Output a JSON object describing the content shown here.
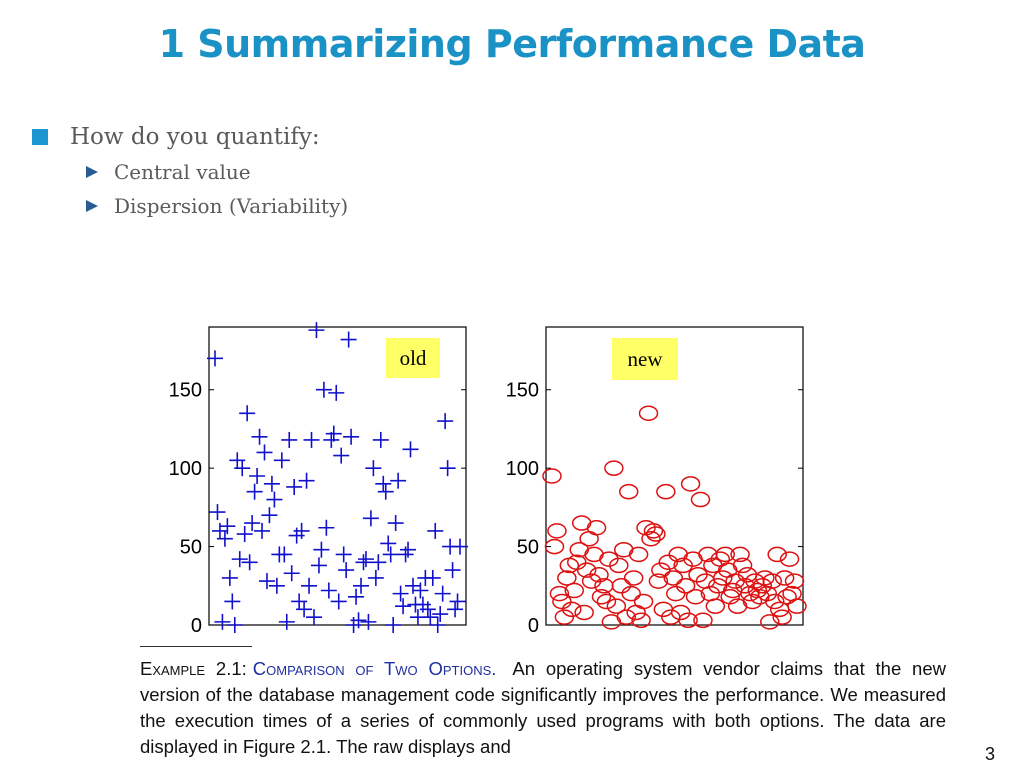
{
  "slide": {
    "title": "1  Summarizing Performance Data",
    "bullet": "How do you quantify:",
    "sub_bullets": [
      "Central value",
      "Dispersion (Variability)"
    ],
    "page_number": "3"
  },
  "caption": {
    "label": "Example 2.1:",
    "title": "Comparison of Two Options.",
    "text": "An operating system vendor claims that the new version of the database management code significantly improves the performance. We measured the execution times of a series of commonly used programs with both options. The data are displayed in Figure 2.1. The raw displays and"
  },
  "colors": {
    "title": "#1a92c6",
    "old_series": "#1010cc",
    "new_series": "#dd1111",
    "label_box": "#ffff66"
  },
  "chart_data": [
    {
      "type": "scatter",
      "annotation": "old",
      "marker": "plus",
      "ylim": [
        0,
        190
      ],
      "yticks": [
        0,
        50,
        100,
        150
      ],
      "grid": false,
      "x": [
        1,
        2,
        3,
        4,
        5,
        6,
        7,
        8,
        9,
        10,
        11,
        12,
        13,
        14,
        15,
        16,
        17,
        18,
        19,
        20,
        21,
        22,
        23,
        24,
        25,
        26,
        27,
        28,
        29,
        30,
        31,
        32,
        33,
        34,
        35,
        36,
        37,
        38,
        39,
        40,
        41,
        42,
        43,
        44,
        45,
        46,
        47,
        48,
        49,
        50,
        51,
        52,
        53,
        54,
        55,
        56,
        57,
        58,
        59,
        60,
        61,
        62,
        63,
        64,
        65,
        66,
        67,
        68,
        69,
        70,
        71,
        72,
        73,
        74,
        75,
        76,
        77,
        78,
        79,
        80,
        81,
        82,
        83,
        84,
        85,
        86,
        87,
        88,
        89,
        90,
        91,
        92,
        93,
        94,
        95,
        96,
        97,
        98,
        99,
        100
      ],
      "y": [
        170,
        72,
        60,
        2,
        55,
        63,
        30,
        15,
        0,
        105,
        42,
        100,
        58,
        135,
        40,
        65,
        85,
        95,
        120,
        60,
        110,
        28,
        70,
        90,
        80,
        25,
        45,
        105,
        45,
        2,
        118,
        33,
        88,
        57,
        15,
        60,
        10,
        92,
        25,
        118,
        5,
        188,
        38,
        48,
        150,
        62,
        22,
        118,
        122,
        148,
        15,
        108,
        45,
        35,
        182,
        120,
        0,
        18,
        3,
        25,
        40,
        42,
        2,
        68,
        100,
        30,
        40,
        118,
        90,
        85,
        52,
        45,
        0,
        65,
        92,
        20,
        12,
        45,
        48,
        112,
        25,
        13,
        5,
        22,
        13,
        30,
        10,
        5,
        30,
        60,
        0,
        7,
        20,
        130,
        100,
        50,
        35,
        10,
        15,
        50
      ]
    },
    {
      "type": "scatter",
      "annotation": "new",
      "marker": "circle",
      "ylim": [
        0,
        190
      ],
      "yticks": [
        0,
        50,
        100,
        150
      ],
      "grid": false,
      "x": [
        1,
        2,
        3,
        4,
        5,
        6,
        7,
        8,
        9,
        10,
        11,
        12,
        13,
        14,
        15,
        16,
        17,
        18,
        19,
        20,
        21,
        22,
        23,
        24,
        25,
        26,
        27,
        28,
        29,
        30,
        31,
        32,
        33,
        34,
        35,
        36,
        37,
        38,
        39,
        40,
        41,
        42,
        43,
        44,
        45,
        46,
        47,
        48,
        49,
        50,
        51,
        52,
        53,
        54,
        55,
        56,
        57,
        58,
        59,
        60,
        61,
        62,
        63,
        64,
        65,
        66,
        67,
        68,
        69,
        70,
        71,
        72,
        73,
        74,
        75,
        76,
        77,
        78,
        79,
        80,
        81,
        82,
        83,
        84,
        85,
        86,
        87,
        88,
        89,
        90,
        91,
        92,
        93,
        94,
        95,
        96,
        97,
        98,
        99,
        100
      ],
      "y": [
        95,
        50,
        60,
        20,
        15,
        5,
        30,
        38,
        10,
        22,
        40,
        48,
        65,
        8,
        35,
        55,
        28,
        45,
        62,
        32,
        18,
        25,
        15,
        42,
        2,
        100,
        12,
        38,
        25,
        48,
        5,
        85,
        20,
        30,
        8,
        45,
        3,
        15,
        62,
        135,
        55,
        60,
        58,
        28,
        35,
        10,
        85,
        40,
        5,
        30,
        20,
        45,
        8,
        38,
        25,
        3,
        90,
        42,
        18,
        32,
        80,
        3,
        28,
        45,
        20,
        38,
        12,
        25,
        42,
        30,
        45,
        35,
        18,
        22,
        28,
        12,
        45,
        38,
        25,
        32,
        20,
        15,
        28,
        22,
        18,
        25,
        30,
        20,
        2,
        28,
        15,
        45,
        10,
        5,
        30,
        18,
        42,
        20,
        28,
        12
      ]
    }
  ]
}
